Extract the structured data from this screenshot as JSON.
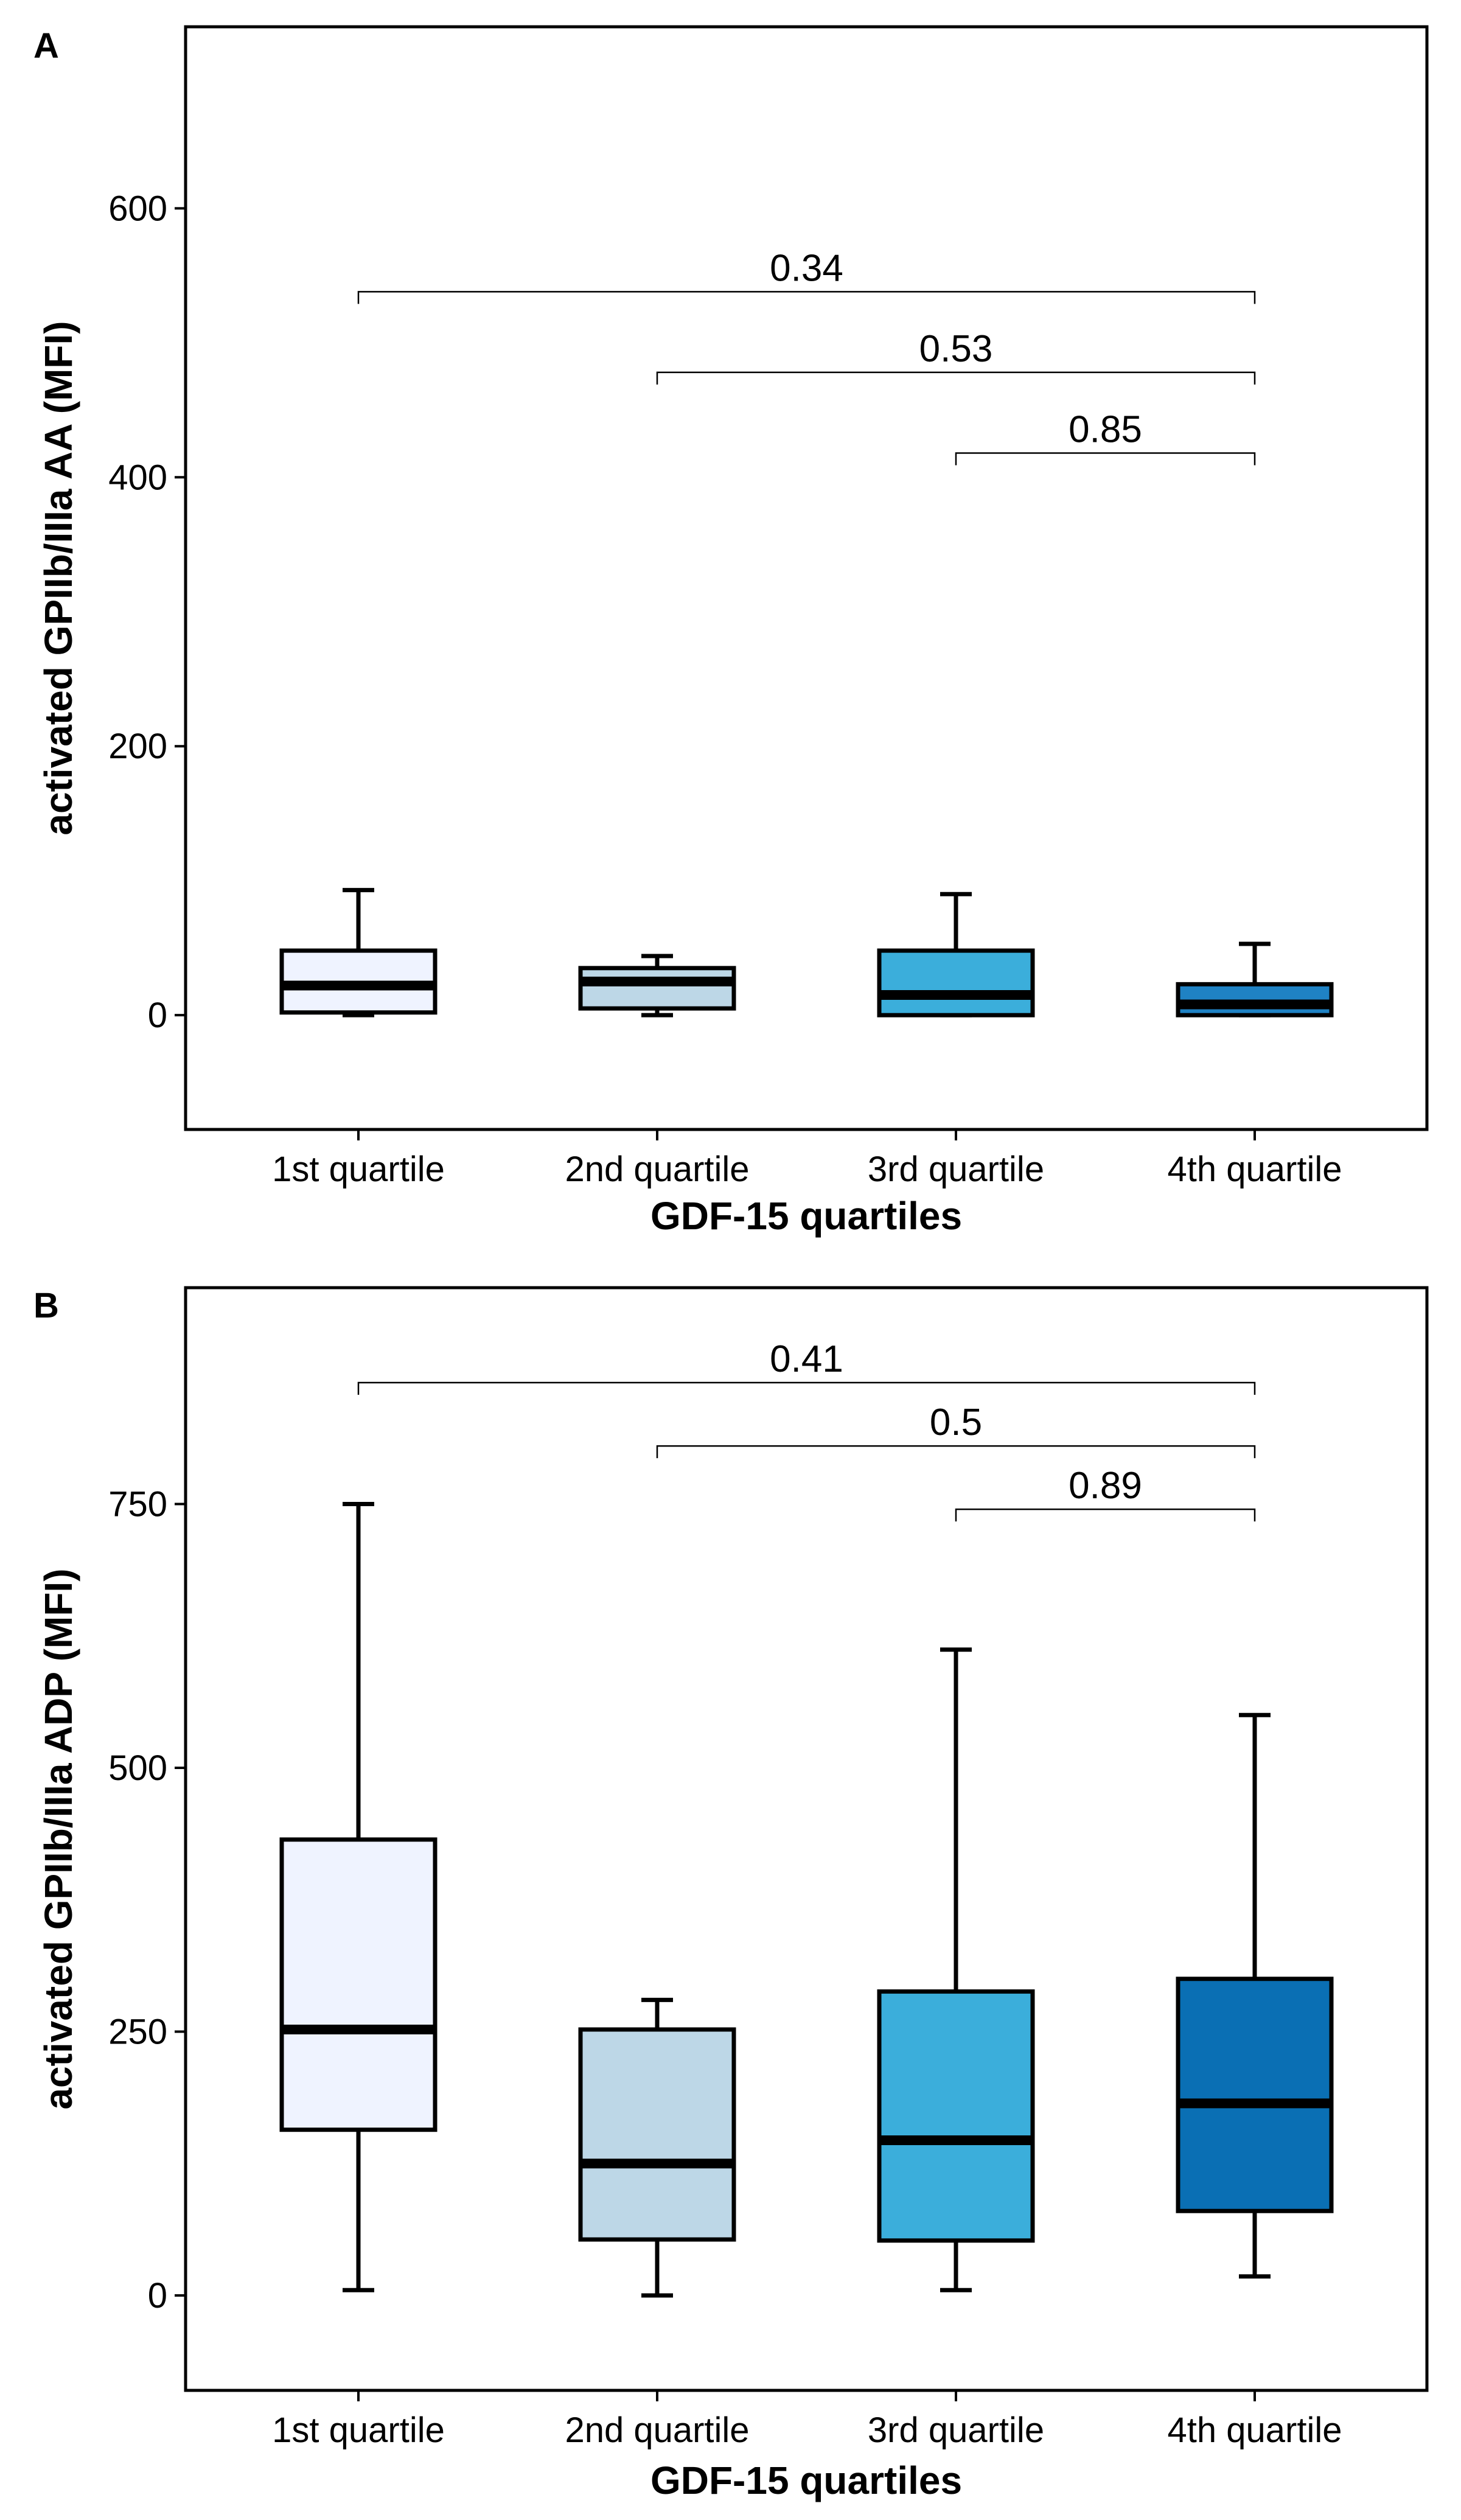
{
  "chart_data": [
    {
      "panel": "A",
      "type": "box",
      "ylabel": "activated GPIIb/IIIa AA (MFI)",
      "xlabel": "GDF-15 quartiles",
      "ylim": [
        -85,
        735
      ],
      "yticks": [
        0,
        200,
        400,
        600
      ],
      "categories": [
        "1st quartile",
        "2nd quartile",
        "3rd quartile",
        "4th quartile"
      ],
      "boxes": [
        {
          "whisker_low": 0,
          "q1": 2,
          "median": 22,
          "q3": 48,
          "whisker_high": 93,
          "color": "#EFF3FF"
        },
        {
          "whisker_low": 0,
          "q1": 5,
          "median": 25,
          "q3": 35,
          "whisker_high": 44,
          "color": "#BDD7E7"
        },
        {
          "whisker_low": 0,
          "q1": 0,
          "median": 15,
          "q3": 48,
          "whisker_high": 90,
          "color": "#3BAEDB"
        },
        {
          "whisker_low": 0,
          "q1": 0,
          "median": 8,
          "q3": 23,
          "whisker_high": 53,
          "color": "#1F82C4"
        }
      ],
      "comparisons": [
        {
          "from": 0,
          "to": 3,
          "label": "0.34",
          "y": 538
        },
        {
          "from": 1,
          "to": 3,
          "label": "0.53",
          "y": 478
        },
        {
          "from": 2,
          "to": 3,
          "label": "0.85",
          "y": 418
        }
      ]
    },
    {
      "panel": "B",
      "type": "box",
      "ylabel": "activated GPIIb/IIIa ADP (MFI)",
      "xlabel": "GDF-15 quartiles",
      "ylim": [
        -90,
        955
      ],
      "yticks": [
        0,
        250,
        500,
        750
      ],
      "categories": [
        "1st quartile",
        "2nd quartile",
        "3rd quartile",
        "4th quartile"
      ],
      "boxes": [
        {
          "whisker_low": 5,
          "q1": 157,
          "median": 252,
          "q3": 432,
          "whisker_high": 750,
          "color": "#EFF3FF"
        },
        {
          "whisker_low": 0,
          "q1": 53,
          "median": 125,
          "q3": 252,
          "whisker_high": 280,
          "color": "#BDD7E7"
        },
        {
          "whisker_low": 5,
          "q1": 52,
          "median": 147,
          "q3": 288,
          "whisker_high": 612,
          "color": "#3BAEDB"
        },
        {
          "whisker_low": 18,
          "q1": 80,
          "median": 182,
          "q3": 300,
          "whisker_high": 550,
          "color": "#0A6FB4"
        }
      ],
      "comparisons": [
        {
          "from": 0,
          "to": 3,
          "label": "0.41",
          "y": 865
        },
        {
          "from": 1,
          "to": 3,
          "label": "0.5",
          "y": 805
        },
        {
          "from": 2,
          "to": 3,
          "label": "0.89",
          "y": 745
        }
      ]
    }
  ]
}
